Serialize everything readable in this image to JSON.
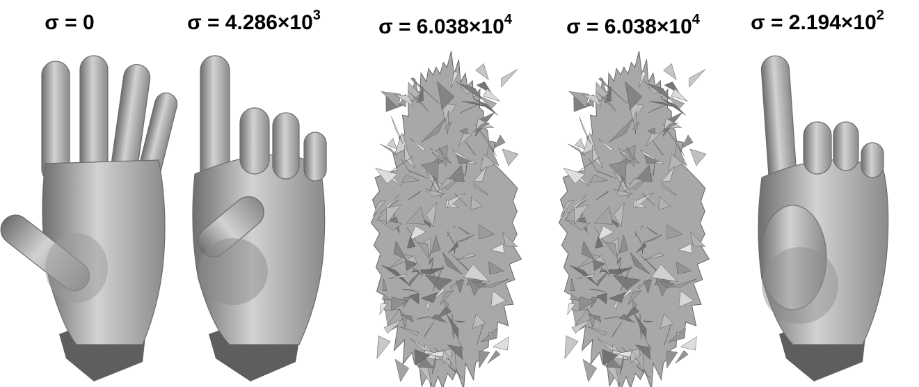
{
  "panels": [
    {
      "label": "σ = 0"
    },
    {
      "label": "σ = 4.286×10",
      "exponent": "3"
    },
    {
      "label": "σ = 6.038×10",
      "exponent": "4"
    },
    {
      "label": "σ = 6.038×10",
      "exponent": "4"
    },
    {
      "label": "σ = 2.194×10",
      "exponent": "2"
    }
  ]
}
